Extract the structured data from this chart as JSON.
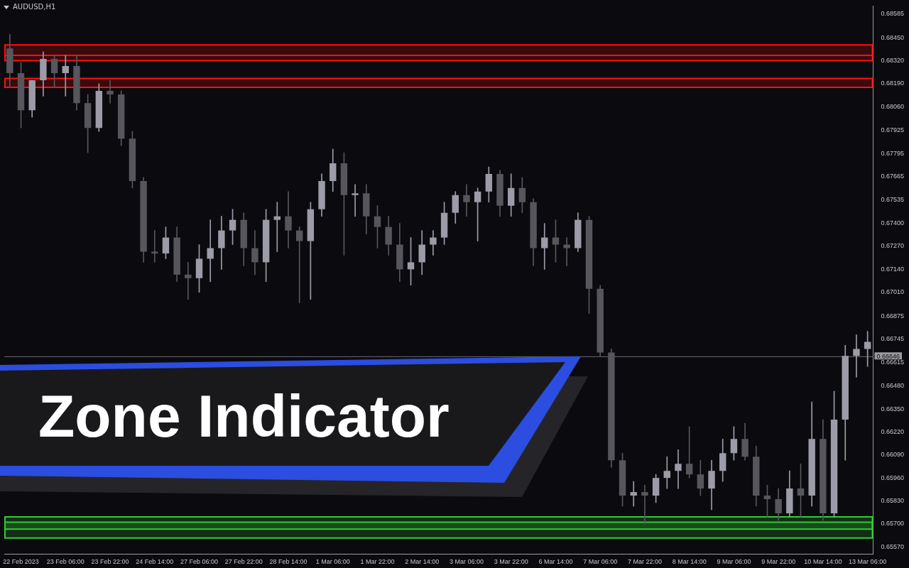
{
  "chart_data": {
    "type": "candlestick",
    "title": "AUDUSD,H1",
    "categories": [
      null,
      "22 Feb 2023",
      null,
      null,
      null,
      "23 Feb 06:00",
      null,
      null,
      null,
      "23 Feb 22:00",
      null,
      null,
      null,
      "24 Feb 14:00",
      null,
      null,
      null,
      "27 Feb 06:00",
      null,
      null,
      null,
      "27 Feb 22:00",
      null,
      null,
      null,
      "28 Feb 14:00",
      null,
      null,
      null,
      "1 Mar 06:00",
      null,
      null,
      null,
      "1 Mar 22:00",
      null,
      null,
      null,
      "2 Mar 14:00",
      null,
      null,
      null,
      "3 Mar 06:00",
      null,
      null,
      null,
      "3 Mar 22:00",
      null,
      null,
      null,
      "6 Mar 14:00",
      null,
      null,
      null,
      "7 Mar 06:00",
      null,
      null,
      null,
      "7 Mar 22:00",
      null,
      null,
      null,
      "8 Mar 14:00",
      null,
      null,
      null,
      "9 Mar 06:00",
      null,
      null,
      null,
      "9 Mar 22:00",
      null,
      null,
      null,
      "10 Mar 14:00",
      null,
      null,
      null,
      "13 Mar 06:00"
    ],
    "ohlc": [
      [
        0.6839,
        0.6847,
        0.6817,
        0.6825
      ],
      [
        0.6825,
        0.6831,
        0.6794,
        0.6804
      ],
      [
        0.6804,
        0.6821,
        0.68,
        0.6821
      ],
      [
        0.6821,
        0.6837,
        0.6812,
        0.6833
      ],
      [
        0.6833,
        0.6835,
        0.6817,
        0.6825
      ],
      [
        0.6825,
        0.6835,
        0.6812,
        0.6829
      ],
      [
        0.6829,
        0.6835,
        0.6804,
        0.6808
      ],
      [
        0.6808,
        0.6813,
        0.678,
        0.6794
      ],
      [
        0.6794,
        0.6819,
        0.6792,
        0.6815
      ],
      [
        0.6815,
        0.6821,
        0.6808,
        0.6813
      ],
      [
        0.6813,
        0.6815,
        0.6784,
        0.6788
      ],
      [
        0.6788,
        0.6792,
        0.676,
        0.6764
      ],
      [
        0.6764,
        0.6766,
        0.6718,
        0.6724
      ],
      [
        0.6724,
        0.6736,
        0.6718,
        0.6723
      ],
      [
        0.6723,
        0.6738,
        0.672,
        0.6732
      ],
      [
        0.6732,
        0.6738,
        0.6707,
        0.6711
      ],
      [
        0.6711,
        0.6718,
        0.6697,
        0.6709
      ],
      [
        0.6709,
        0.6728,
        0.6701,
        0.672
      ],
      [
        0.672,
        0.6742,
        0.6707,
        0.6726
      ],
      [
        0.6726,
        0.6744,
        0.6714,
        0.6736
      ],
      [
        0.6736,
        0.6748,
        0.6728,
        0.6742
      ],
      [
        0.6742,
        0.6746,
        0.6716,
        0.6726
      ],
      [
        0.6726,
        0.6736,
        0.6711,
        0.6718
      ],
      [
        0.6718,
        0.6748,
        0.6707,
        0.6742
      ],
      [
        0.6742,
        0.6752,
        0.6724,
        0.6744
      ],
      [
        0.6744,
        0.6758,
        0.6726,
        0.6736
      ],
      [
        0.6736,
        0.6738,
        0.6695,
        0.673
      ],
      [
        0.673,
        0.6752,
        0.6697,
        0.6748
      ],
      [
        0.6748,
        0.6768,
        0.6744,
        0.6764
      ],
      [
        0.6764,
        0.6782,
        0.6758,
        0.6774
      ],
      [
        0.6774,
        0.678,
        0.6722,
        0.6756
      ],
      [
        0.6756,
        0.6762,
        0.6744,
        0.6757
      ],
      [
        0.6757,
        0.6762,
        0.6734,
        0.6744
      ],
      [
        0.6744,
        0.675,
        0.6726,
        0.6738
      ],
      [
        0.6738,
        0.6744,
        0.6722,
        0.6728
      ],
      [
        0.6728,
        0.674,
        0.6707,
        0.6714
      ],
      [
        0.6714,
        0.6732,
        0.6705,
        0.6718
      ],
      [
        0.6718,
        0.6736,
        0.6711,
        0.6728
      ],
      [
        0.6728,
        0.6736,
        0.6722,
        0.6732
      ],
      [
        0.6732,
        0.6752,
        0.6728,
        0.6746
      ],
      [
        0.6746,
        0.6758,
        0.674,
        0.6756
      ],
      [
        0.6756,
        0.6762,
        0.6744,
        0.6752
      ],
      [
        0.6752,
        0.676,
        0.673,
        0.6758
      ],
      [
        0.6758,
        0.6772,
        0.6752,
        0.6768
      ],
      [
        0.6768,
        0.677,
        0.6744,
        0.675
      ],
      [
        0.675,
        0.6768,
        0.6744,
        0.676
      ],
      [
        0.676,
        0.6766,
        0.6746,
        0.6752
      ],
      [
        0.6752,
        0.6754,
        0.6716,
        0.6726
      ],
      [
        0.6726,
        0.674,
        0.6714,
        0.6732
      ],
      [
        0.6732,
        0.6742,
        0.6718,
        0.6728
      ],
      [
        0.6728,
        0.6732,
        0.6716,
        0.6726
      ],
      [
        0.6726,
        0.6746,
        0.6724,
        0.6742
      ],
      [
        0.6742,
        0.6744,
        0.6689,
        0.6703
      ],
      [
        0.6703,
        0.6705,
        0.6665,
        0.6667
      ],
      [
        0.6667,
        0.6669,
        0.6602,
        0.6606
      ],
      [
        0.6606,
        0.661,
        0.658,
        0.6586
      ],
      [
        0.6586,
        0.6594,
        0.658,
        0.6588
      ],
      [
        0.6588,
        0.6592,
        0.657,
        0.6586
      ],
      [
        0.6586,
        0.6598,
        0.6582,
        0.6596
      ],
      [
        0.6596,
        0.6608,
        0.659,
        0.66
      ],
      [
        0.66,
        0.6612,
        0.659,
        0.6604
      ],
      [
        0.6604,
        0.6625,
        0.6596,
        0.6598
      ],
      [
        0.6598,
        0.6606,
        0.6586,
        0.659
      ],
      [
        0.659,
        0.6606,
        0.6578,
        0.66
      ],
      [
        0.66,
        0.6618,
        0.6594,
        0.661
      ],
      [
        0.661,
        0.6625,
        0.6606,
        0.6618
      ],
      [
        0.6618,
        0.6627,
        0.6606,
        0.6608
      ],
      [
        0.6608,
        0.6614,
        0.658,
        0.6586
      ],
      [
        0.6586,
        0.6592,
        0.6574,
        0.6584
      ],
      [
        0.6584,
        0.659,
        0.6572,
        0.6576
      ],
      [
        0.6576,
        0.66,
        0.6574,
        0.659
      ],
      [
        0.659,
        0.6604,
        0.6574,
        0.6586
      ],
      [
        0.6586,
        0.6639,
        0.658,
        0.6618
      ],
      [
        0.6618,
        0.6629,
        0.6572,
        0.6576
      ],
      [
        0.6576,
        0.6645,
        0.6574,
        0.6629
      ],
      [
        0.6629,
        0.6671,
        0.6606,
        0.6665
      ],
      [
        0.6665,
        0.6677,
        0.6653,
        0.6669
      ],
      [
        0.6669,
        0.6679,
        0.6659,
        0.6673
      ]
    ],
    "colors": [
      "#56565c",
      "#56565c",
      "#9c9ca8",
      "#9c9ca8",
      "#56565c",
      "#9c9ca8",
      "#56565c",
      "#56565c",
      "#9c9ca8",
      "#56565c",
      "#56565c",
      "#56565c",
      "#56565c",
      "#56565c",
      "#9c9ca8",
      "#56565c",
      "#56565c",
      "#9c9ca8",
      "#9c9ca8",
      "#9c9ca8",
      "#9c9ca8",
      "#56565c",
      "#56565c",
      "#9c9ca8",
      "#9c9ca8",
      "#56565c",
      "#56565c",
      "#9c9ca8",
      "#9c9ca8",
      "#9c9ca8",
      "#56565c",
      "#9c9ca8",
      "#56565c",
      "#56565c",
      "#56565c",
      "#56565c",
      "#9c9ca8",
      "#9c9ca8",
      "#9c9ca8",
      "#9c9ca8",
      "#9c9ca8",
      "#56565c",
      "#9c9ca8",
      "#9c9ca8",
      "#56565c",
      "#9c9ca8",
      "#56565c",
      "#56565c",
      "#9c9ca8",
      "#56565c",
      "#56565c",
      "#9c9ca8",
      "#56565c",
      "#56565c",
      "#56565c",
      "#56565c",
      "#9c9ca8",
      "#56565c",
      "#9c9ca8",
      "#9c9ca8",
      "#9c9ca8",
      "#56565c",
      "#56565c",
      "#9c9ca8",
      "#9c9ca8",
      "#9c9ca8",
      "#56565c",
      "#56565c",
      "#56565c",
      "#56565c",
      "#9c9ca8",
      "#56565c",
      "#9c9ca8",
      "#56565c",
      "#9c9ca8",
      "#9c9ca8",
      "#9c9ca8",
      "#9c9ca8"
    ],
    "ylim": [
      0.6553,
      0.6863
    ],
    "yticks": [
      0.68585,
      {
        "value": 0.6845,
        "label": "0.68450"
      },
      {
        "value": 0.6832,
        "label": "0.68320"
      },
      {
        "value": 0.6819,
        "label": "0.68190"
      },
      {
        "value": 0.6806,
        "label": "0.68060"
      },
      0.67925,
      0.67795,
      0.67665,
      0.67535,
      {
        "value": 0.674,
        "label": "0.67400"
      },
      {
        "value": 0.6727,
        "label": "0.67270"
      },
      {
        "value": 0.6714,
        "label": "0.67140"
      },
      {
        "value": 0.6701,
        "label": "0.67010"
      },
      0.66875,
      0.66745,
      0.66615,
      {
        "value": 0.6648,
        "label": "0.66480"
      },
      {
        "value": 0.6635,
        "label": "0.66350"
      },
      {
        "value": 0.6622,
        "label": "0.66220"
      },
      {
        "value": 0.6609,
        "label": "0.66090"
      },
      {
        "value": 0.6596,
        "label": "0.65960"
      },
      {
        "value": 0.6583,
        "label": "0.65830"
      },
      {
        "value": 0.657,
        "label": "0.65700"
      },
      {
        "value": 0.6557,
        "label": "0.65570"
      }
    ],
    "ref_lines": [
      {
        "axis": "y",
        "value": 0.66646,
        "label": "0.66646",
        "color": "#6a6a72"
      }
    ],
    "bands": [
      {
        "axis": "y",
        "from": 0.6835,
        "to": 0.6841,
        "color": "#ff1010"
      },
      {
        "axis": "y",
        "from": 0.6832,
        "to": 0.6835,
        "color": "#ff1010"
      },
      {
        "axis": "y",
        "from": 0.6817,
        "to": 0.6822,
        "color": "#ff1010"
      },
      {
        "axis": "y",
        "from": 0.6567,
        "to": 0.6571,
        "color": "#33cc33"
      },
      {
        "axis": "y",
        "from": 0.6562,
        "to": 0.6574,
        "color": "#33cc33"
      }
    ],
    "annotations": [
      "Zone Indicator"
    ],
    "grid": false,
    "legend": false
  }
}
